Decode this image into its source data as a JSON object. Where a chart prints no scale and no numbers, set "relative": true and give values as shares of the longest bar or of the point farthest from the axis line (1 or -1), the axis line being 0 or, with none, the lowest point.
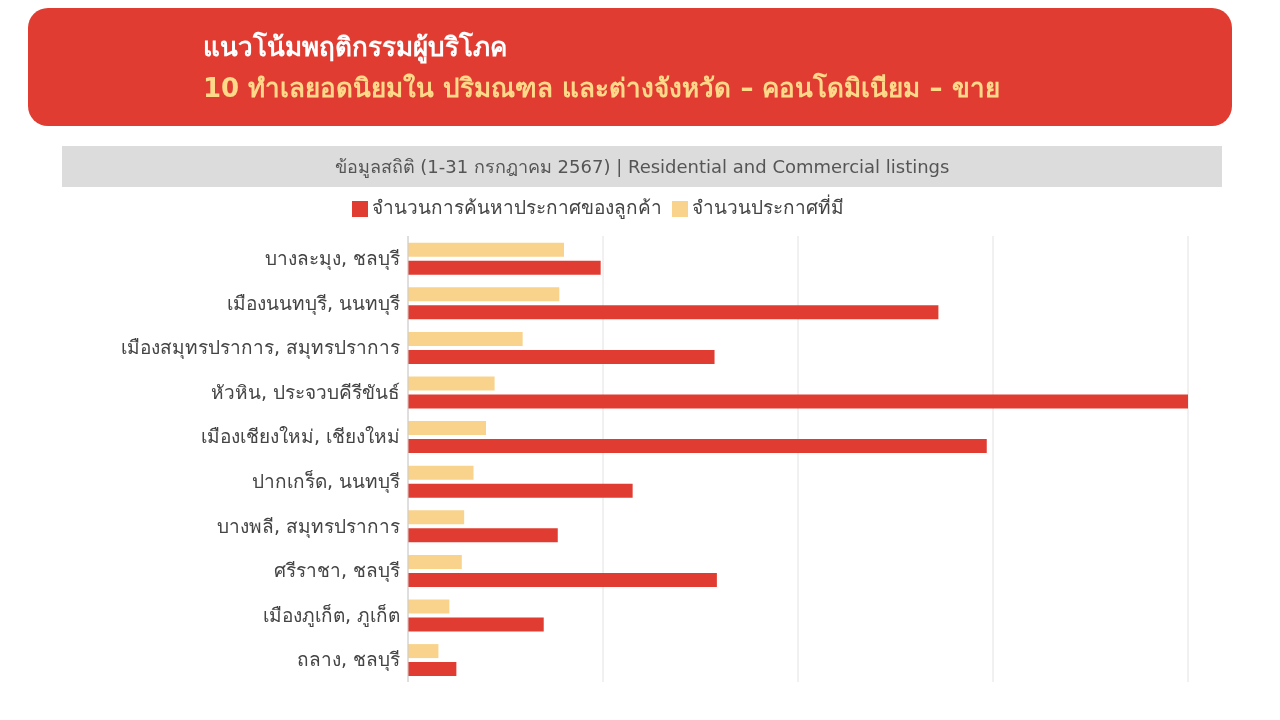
{
  "chart_data": {
    "type": "bar",
    "orientation": "horizontal",
    "relative": true,
    "title": "แนวโน้มพฤติกรรมผู้บริโภค",
    "subtitle": "10 ทำเลยอดนิยมใน ปริมณฑล และต่างจังหวัด – คอนโดมิเนียม – ขาย",
    "annotations": [
      "ข้อมูลสถิติ (1-31 กรกฎาคม 2567) | Residential and Commercial listings"
    ],
    "categories": [
      "บางละมุง, ชลบุรี",
      "เมืองนนทบุรี, นนทบุรี",
      "เมืองสมุทรปราการ, สมุทรปราการ",
      "หัวหิน, ประจวบคีรีขันธ์",
      "เมืองเชียงใหม่, เชียงใหม่",
      "ปากเกร็ด, นนทบุรี",
      "บางพลี, สมุทรปราการ",
      "ศรีราชา, ชลบุรี",
      "เมืองภูเก็ต, ภูเก็ต",
      "ถลาง, ชลบุรี"
    ],
    "series": [
      {
        "name": "จำนวนประกาศที่มี",
        "color": "#f9d38c",
        "values": [
          0.2,
          0.194,
          0.147,
          0.111,
          0.1,
          0.084,
          0.072,
          0.069,
          0.053,
          0.039
        ]
      },
      {
        "name": "จำนวนการค้นหาประกาศของลูกค้า",
        "color": "#e03c31",
        "values": [
          0.247,
          0.68,
          0.393,
          1,
          0.742,
          0.288,
          0.192,
          0.396,
          0.174,
          0.062
        ]
      }
    ],
    "grid": "x",
    "legend": "top"
  }
}
